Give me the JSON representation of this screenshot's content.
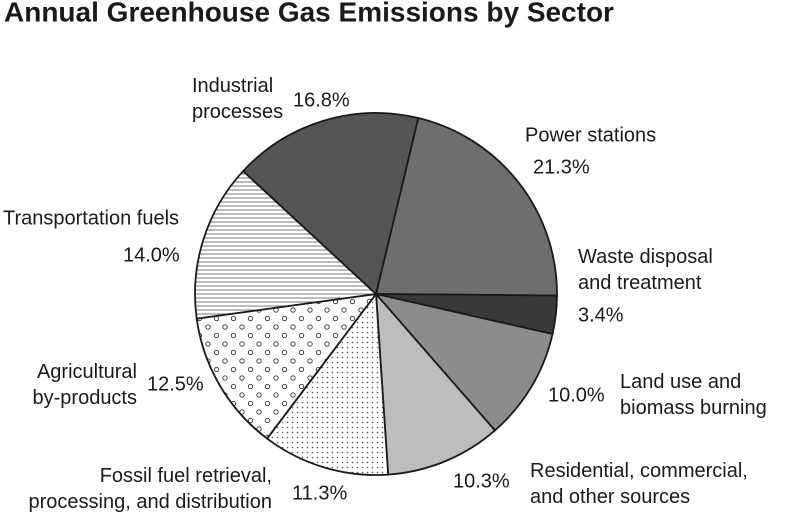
{
  "chart_data": {
    "type": "pie",
    "title": "Annual Greenhouse Gas Emissions by Sector",
    "categories": [
      "Power stations",
      "Waste disposal\nand treatment",
      "Land use and\nbiomass burning",
      "Residential, commercial,\nand other sources",
      "Fossil fuel retrieval,\nprocessing, and distribution",
      "Agricultural\nby-products",
      "Transportation fuels",
      "Industrial\nprocesses"
    ],
    "values": [
      21.3,
      3.4,
      10.0,
      10.3,
      11.3,
      12.5,
      14.0,
      16.8
    ],
    "value_labels": [
      "21.3%",
      "3.4%",
      "10.0%",
      "10.3%",
      "11.3%",
      "12.5%",
      "14.0%",
      "16.8%"
    ],
    "colors": [
      "#6e6e6e",
      "#3a3a3a",
      "#8c8c8c",
      "#bdbdbd",
      "dots",
      "circles",
      "hlines",
      "#555555"
    ]
  }
}
